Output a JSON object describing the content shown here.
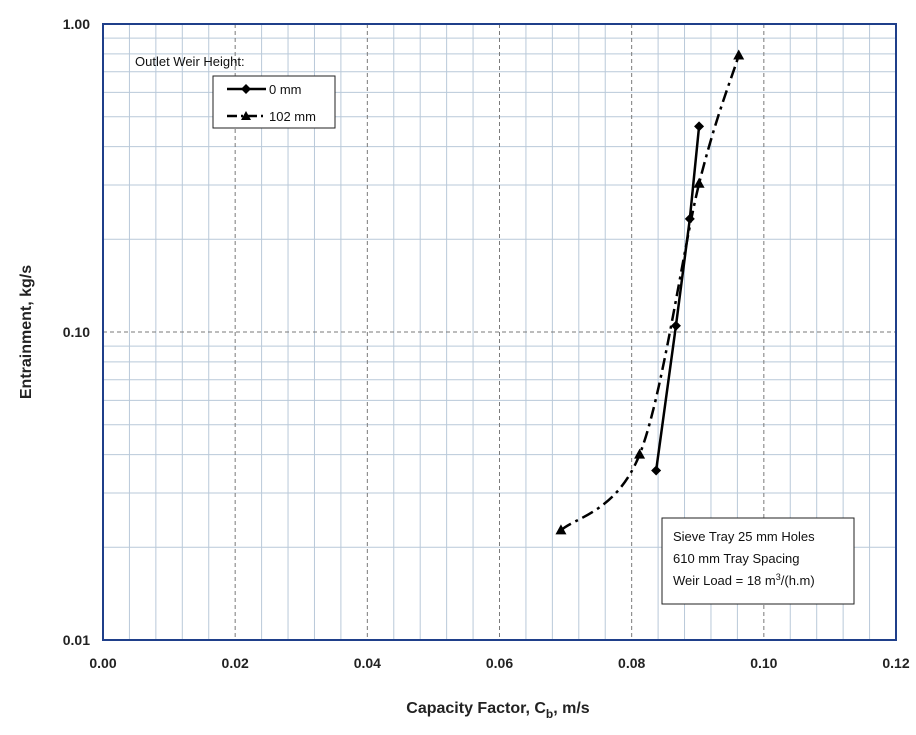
{
  "chart_data": {
    "type": "line",
    "xlabel": "Capacity Factor, C",
    "xlabel_sub": "b",
    "xlabel_unit": ", m/s",
    "ylabel": "Entrainment,  kg/s",
    "xlim": [
      0,
      0.12
    ],
    "ylim": [
      0.01,
      1.0
    ],
    "yscale": "log",
    "grid": true,
    "x_ticks": [
      "0.00",
      "0.02",
      "0.04",
      "0.06",
      "0.08",
      "0.10",
      "0.12"
    ],
    "x_tick_values": [
      0,
      0.02,
      0.04,
      0.06,
      0.08,
      0.1,
      0.12
    ],
    "y_ticks": [
      "0.01",
      "0.10",
      "1.00"
    ],
    "y_tick_values": [
      0.01,
      0.1,
      1.0
    ],
    "legend": {
      "title": "Outlet Weir Height:",
      "placement": "top-left"
    },
    "series": [
      {
        "name": "0 mm",
        "line_style": "solid",
        "marker": "diamond",
        "x": [
          0.0837,
          0.0867,
          0.0888,
          0.0902
        ],
        "y": [
          0.0355,
          0.1048,
          0.233,
          0.465
        ]
      },
      {
        "name": "102 mm",
        "line_style": "dash-dot",
        "marker": "triangle",
        "x": [
          0.0693,
          0.0812,
          0.0902,
          0.0962
        ],
        "y": [
          0.0227,
          0.04,
          0.303,
          0.79
        ]
      }
    ],
    "annotation": {
      "lines": [
        "Sieve Tray 25 mm Holes",
        "610 mm Tray Spacing",
        "Weir Load = 18 m"
      ],
      "line3_sup": "3",
      "line3_tail": "/(h.m)"
    }
  }
}
